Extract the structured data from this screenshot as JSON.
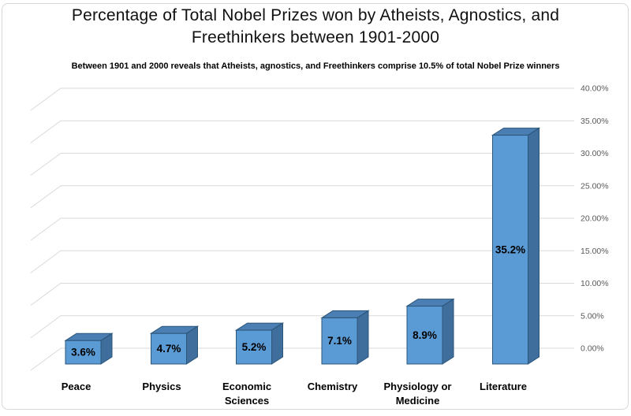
{
  "chart_data": {
    "type": "bar",
    "style_3d": true,
    "title": "Percentage of Total Nobel Prizes won by Atheists, Agnostics, and Freethinkers  between 1901-2000",
    "title_lines": [
      "Percentage of Total Nobel Prizes won by Atheists, Agnostics, and",
      "Freethinkers  between 1901-2000"
    ],
    "subtitle": "Between 1901 and 2000 reveals that Atheists, agnostics, and Freethinkers comprise 10.5% of total Nobel Prize winners",
    "categories": [
      "Peace",
      "Physics",
      "Economic Sciences",
      "Chemistry",
      "Physiology or Medicine",
      "Literature"
    ],
    "category_label_lines": [
      [
        "Peace"
      ],
      [
        "Physics"
      ],
      [
        "Economic",
        "Sciences"
      ],
      [
        "Chemistry"
      ],
      [
        "Physiology or",
        "Medicine"
      ],
      [
        "Literature"
      ]
    ],
    "values": [
      3.6,
      4.7,
      5.2,
      7.1,
      8.9,
      35.2
    ],
    "data_labels": [
      "3.6%",
      "4.7%",
      "5.2%",
      "7.1%",
      "8.9%",
      "35.2%"
    ],
    "xlabel": "",
    "ylabel": "",
    "y_axis": {
      "side": "right",
      "min": 0,
      "max": 40,
      "step": 5,
      "tick_labels": [
        "0.00%",
        "5.00%",
        "10.00%",
        "15.00%",
        "20.00%",
        "25.00%",
        "30.00%",
        "35.00%",
        "40.00%"
      ]
    },
    "grid": true,
    "legend": "none",
    "colors": {
      "bar_front": "#5B9BD5",
      "bar_top": "#4B7EB2",
      "bar_side": "#3F6D9C",
      "bar_stroke": "#2B5579",
      "gridline": "#D9D9D9",
      "tick_text": "#595959",
      "title_text": "#111111",
      "label_text": "#000000",
      "frame_border": "#D8D8D8"
    }
  }
}
